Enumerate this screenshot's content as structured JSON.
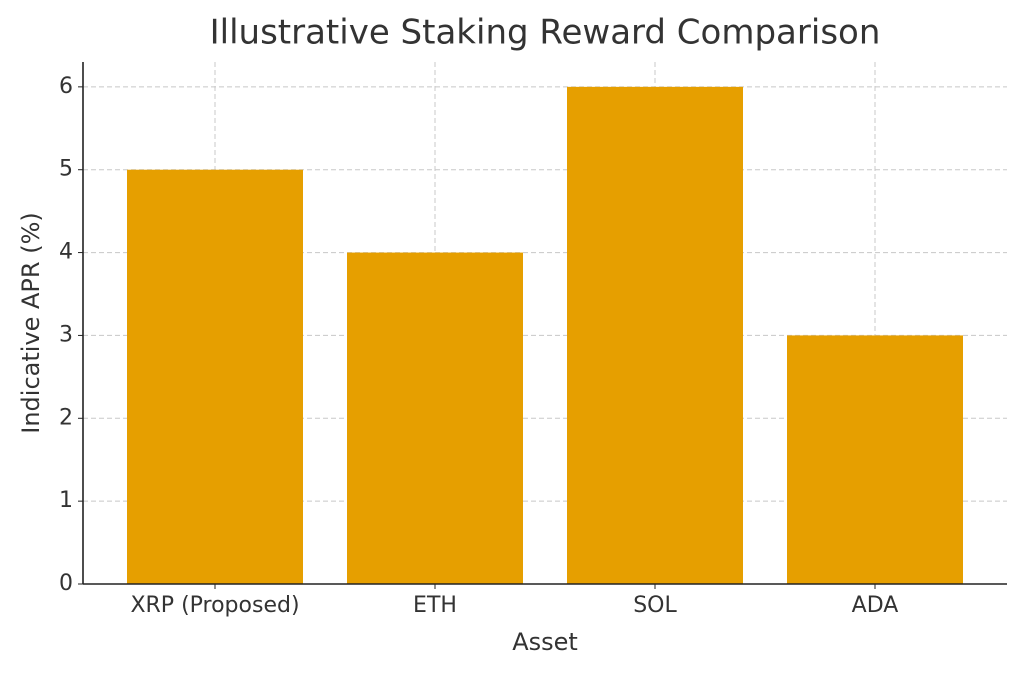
{
  "chart_data": {
    "type": "bar",
    "title": "Illustrative Staking Reward Comparison",
    "x_label": "Asset",
    "y_label": "Indicative APR (%)",
    "categories": [
      "XRP (Proposed)",
      "ETH",
      "SOL",
      "ADA"
    ],
    "values": [
      5,
      4,
      6,
      3
    ],
    "color": "#e69f00",
    "ylim": [
      0,
      6.3
    ],
    "yticks": [
      0,
      1,
      2,
      3,
      4,
      5,
      6
    ],
    "grid": true
  }
}
